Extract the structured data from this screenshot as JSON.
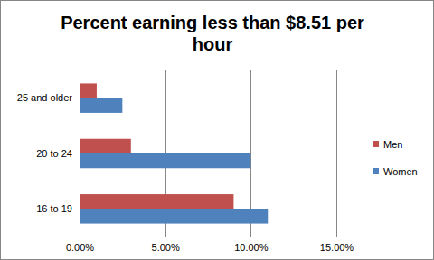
{
  "chart_data": {
    "type": "bar",
    "orientation": "horizontal",
    "title": "Percent earning less than $8.51 per hour",
    "categories": [
      "25 and older",
      "20 to 24",
      "16 to 19"
    ],
    "series": [
      {
        "name": "Men",
        "color": "#c0504d",
        "values": [
          1.0,
          3.0,
          9.0
        ]
      },
      {
        "name": "Women",
        "color": "#4f81bd",
        "values": [
          2.5,
          10.0,
          11.0
        ]
      }
    ],
    "xlim": [
      0,
      15
    ],
    "xticks": [
      {
        "value": 0,
        "label": "0.00%"
      },
      {
        "value": 5,
        "label": "5.00%"
      },
      {
        "value": 10,
        "label": "10.00%"
      },
      {
        "value": 15,
        "label": "15.00%"
      }
    ],
    "grid": true,
    "legend": "right"
  }
}
